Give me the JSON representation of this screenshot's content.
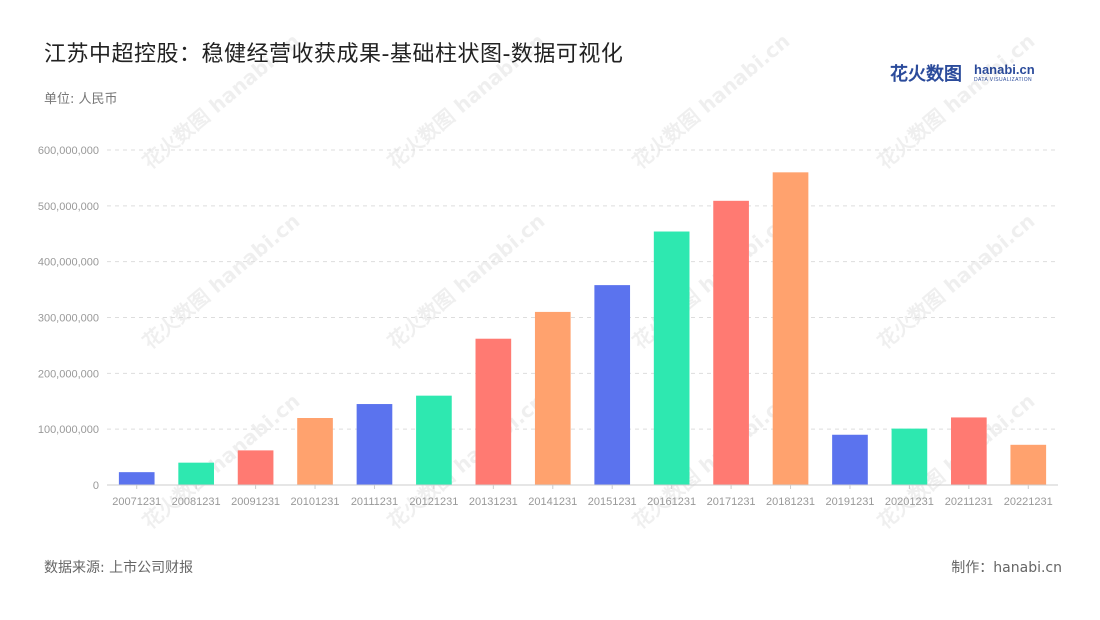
{
  "header": {
    "title": "江苏中超控股：稳健经营收获成果-基础柱状图-数据可视化",
    "unit": "单位: 人民币"
  },
  "logo": {
    "cn": "花火数图",
    "en": "hanabi.cn",
    "en_sub": "DATA VISUALIZATION"
  },
  "watermark": {
    "text": "花火数图 hanabi.cn"
  },
  "footer": {
    "source": "数据来源: 上市公司财报",
    "credit": "制作：hanabi.cn"
  },
  "colors": {
    "palette": [
      "#5b73ee",
      "#2ee8b0",
      "#ff7a72",
      "#ffa26e"
    ],
    "grid": "#dddddd",
    "axis": "#cccccc"
  },
  "chart_data": {
    "type": "bar",
    "categories": [
      "20071231",
      "20081231",
      "20091231",
      "20101231",
      "20111231",
      "20121231",
      "20131231",
      "20141231",
      "20151231",
      "20161231",
      "20171231",
      "20181231",
      "20191231",
      "20201231",
      "20211231",
      "20221231"
    ],
    "values": [
      23000000,
      40000000,
      62000000,
      120000000,
      145000000,
      160000000,
      262000000,
      310000000,
      358000000,
      454000000,
      509000000,
      560000000,
      90000000,
      101000000,
      121000000,
      72000000
    ],
    "ylim": [
      0,
      600000000
    ],
    "yticks": [
      0,
      100000000,
      200000000,
      300000000,
      400000000,
      500000000,
      600000000
    ],
    "ytick_labels": [
      "0",
      "100,000,000",
      "200,000,000",
      "300,000,000",
      "400,000,000",
      "500,000,000",
      "600,000,000"
    ],
    "grid": true,
    "legend": "none"
  }
}
